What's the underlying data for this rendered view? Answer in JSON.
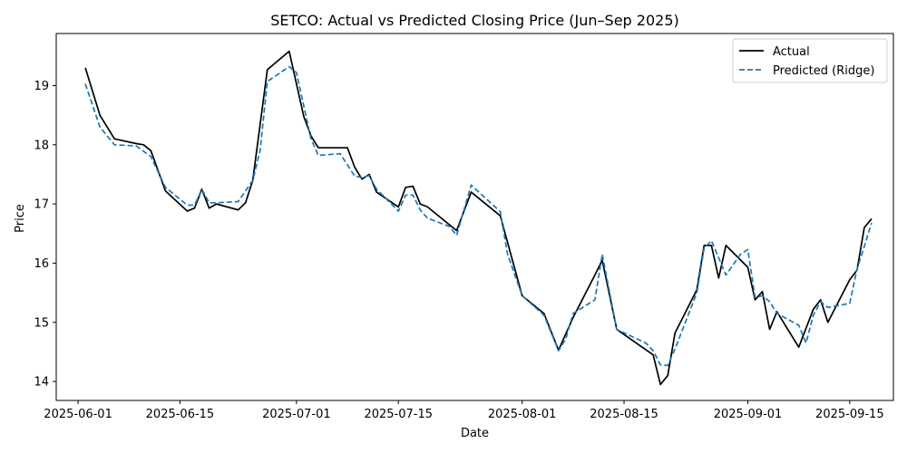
{
  "chart_data": {
    "type": "line",
    "title": "SETCO: Actual vs Predicted Closing Price (Jun–Sep 2025)",
    "xlabel": "Date",
    "ylabel": "Price",
    "x_axis": "date",
    "xlim": [
      "2025-05-29",
      "2025-09-21"
    ],
    "ylim": [
      13.68,
      19.88
    ],
    "x_ticks": [
      "2025-06-01",
      "2025-06-15",
      "2025-07-01",
      "2025-07-15",
      "2025-08-01",
      "2025-08-15",
      "2025-09-01",
      "2025-09-15"
    ],
    "y_ticks": [
      14,
      15,
      16,
      17,
      18,
      19
    ],
    "grid": false,
    "legend_position": "top-right",
    "series": [
      {
        "name": "Actual",
        "color": "#000000",
        "style": "solid",
        "points": [
          [
            "2025-06-02",
            19.3
          ],
          [
            "2025-06-04",
            18.5
          ],
          [
            "2025-06-06",
            18.1
          ],
          [
            "2025-06-09",
            18.02
          ],
          [
            "2025-06-10",
            18.0
          ],
          [
            "2025-06-11",
            17.9
          ],
          [
            "2025-06-13",
            17.22
          ],
          [
            "2025-06-16",
            16.88
          ],
          [
            "2025-06-17",
            16.93
          ],
          [
            "2025-06-18",
            17.25
          ],
          [
            "2025-06-19",
            16.93
          ],
          [
            "2025-06-20",
            17.0
          ],
          [
            "2025-06-23",
            16.9
          ],
          [
            "2025-06-24",
            17.02
          ],
          [
            "2025-06-25",
            17.4
          ],
          [
            "2025-06-27",
            19.27
          ],
          [
            "2025-06-30",
            19.58
          ],
          [
            "2025-07-02",
            18.48
          ],
          [
            "2025-07-03",
            18.15
          ],
          [
            "2025-07-04",
            17.95
          ],
          [
            "2025-07-08",
            17.95
          ],
          [
            "2025-07-09",
            17.62
          ],
          [
            "2025-07-10",
            17.42
          ],
          [
            "2025-07-11",
            17.5
          ],
          [
            "2025-07-12",
            17.2
          ],
          [
            "2025-07-15",
            16.95
          ],
          [
            "2025-07-16",
            17.28
          ],
          [
            "2025-07-17",
            17.3
          ],
          [
            "2025-07-18",
            17.0
          ],
          [
            "2025-07-19",
            16.95
          ],
          [
            "2025-07-23",
            16.55
          ],
          [
            "2025-07-25",
            17.2
          ],
          [
            "2025-07-29",
            16.8
          ],
          [
            "2025-08-01",
            15.45
          ],
          [
            "2025-08-04",
            15.15
          ],
          [
            "2025-08-06",
            14.53
          ],
          [
            "2025-08-08",
            15.08
          ],
          [
            "2025-08-11",
            15.8
          ],
          [
            "2025-08-12",
            16.05
          ],
          [
            "2025-08-14",
            14.88
          ],
          [
            "2025-08-19",
            14.45
          ],
          [
            "2025-08-20",
            13.95
          ],
          [
            "2025-08-21",
            14.1
          ],
          [
            "2025-08-22",
            14.82
          ],
          [
            "2025-08-25",
            15.55
          ],
          [
            "2025-08-26",
            16.3
          ],
          [
            "2025-08-27",
            16.3
          ],
          [
            "2025-08-28",
            15.75
          ],
          [
            "2025-08-29",
            16.3
          ],
          [
            "2025-09-01",
            15.93
          ],
          [
            "2025-09-02",
            15.38
          ],
          [
            "2025-09-03",
            15.52
          ],
          [
            "2025-09-04",
            14.88
          ],
          [
            "2025-09-05",
            15.18
          ],
          [
            "2025-09-08",
            14.58
          ],
          [
            "2025-09-10",
            15.22
          ],
          [
            "2025-09-11",
            15.38
          ],
          [
            "2025-09-12",
            15.0
          ],
          [
            "2025-09-15",
            15.72
          ],
          [
            "2025-09-16",
            15.88
          ],
          [
            "2025-09-17",
            16.6
          ],
          [
            "2025-09-18",
            16.75
          ]
        ]
      },
      {
        "name": "Predicted (Ridge)",
        "color": "#1f77b4",
        "style": "dashed",
        "points": [
          [
            "2025-06-02",
            19.03
          ],
          [
            "2025-06-04",
            18.3
          ],
          [
            "2025-06-06",
            18.0
          ],
          [
            "2025-06-09",
            17.98
          ],
          [
            "2025-06-11",
            17.8
          ],
          [
            "2025-06-13",
            17.28
          ],
          [
            "2025-06-16",
            16.98
          ],
          [
            "2025-06-17",
            16.98
          ],
          [
            "2025-06-18",
            17.25
          ],
          [
            "2025-06-19",
            17.02
          ],
          [
            "2025-06-20",
            17.02
          ],
          [
            "2025-06-23",
            17.04
          ],
          [
            "2025-06-25",
            17.4
          ],
          [
            "2025-06-26",
            17.9
          ],
          [
            "2025-06-27",
            19.07
          ],
          [
            "2025-06-30",
            19.32
          ],
          [
            "2025-07-01",
            19.22
          ],
          [
            "2025-07-03",
            18.1
          ],
          [
            "2025-07-04",
            17.82
          ],
          [
            "2025-07-07",
            17.85
          ],
          [
            "2025-07-09",
            17.47
          ],
          [
            "2025-07-10",
            17.45
          ],
          [
            "2025-07-11",
            17.48
          ],
          [
            "2025-07-12",
            17.25
          ],
          [
            "2025-07-15",
            16.88
          ],
          [
            "2025-07-16",
            17.15
          ],
          [
            "2025-07-17",
            17.15
          ],
          [
            "2025-07-18",
            16.9
          ],
          [
            "2025-07-19",
            16.76
          ],
          [
            "2025-07-22",
            16.62
          ],
          [
            "2025-07-23",
            16.47
          ],
          [
            "2025-07-25",
            17.32
          ],
          [
            "2025-07-29",
            16.87
          ],
          [
            "2025-07-30",
            16.15
          ],
          [
            "2025-08-01",
            15.45
          ],
          [
            "2025-08-04",
            15.12
          ],
          [
            "2025-08-06",
            14.52
          ],
          [
            "2025-08-07",
            14.72
          ],
          [
            "2025-08-08",
            15.15
          ],
          [
            "2025-08-11",
            15.38
          ],
          [
            "2025-08-12",
            16.15
          ],
          [
            "2025-08-14",
            14.88
          ],
          [
            "2025-08-18",
            14.65
          ],
          [
            "2025-08-19",
            14.52
          ],
          [
            "2025-08-20",
            14.28
          ],
          [
            "2025-08-21",
            14.27
          ],
          [
            "2025-08-22",
            14.55
          ],
          [
            "2025-08-25",
            15.5
          ],
          [
            "2025-08-26",
            16.25
          ],
          [
            "2025-08-27",
            16.38
          ],
          [
            "2025-08-29",
            15.8
          ],
          [
            "2025-08-31",
            16.15
          ],
          [
            "2025-09-01",
            16.23
          ],
          [
            "2025-09-02",
            15.42
          ],
          [
            "2025-09-03",
            15.45
          ],
          [
            "2025-09-04",
            15.35
          ],
          [
            "2025-09-05",
            15.15
          ],
          [
            "2025-09-08",
            14.95
          ],
          [
            "2025-09-09",
            14.65
          ],
          [
            "2025-09-10",
            15.12
          ],
          [
            "2025-09-11",
            15.35
          ],
          [
            "2025-09-12",
            15.25
          ],
          [
            "2025-09-15",
            15.32
          ],
          [
            "2025-09-16",
            15.9
          ],
          [
            "2025-09-17",
            16.28
          ],
          [
            "2025-09-18",
            16.68
          ]
        ]
      }
    ]
  }
}
